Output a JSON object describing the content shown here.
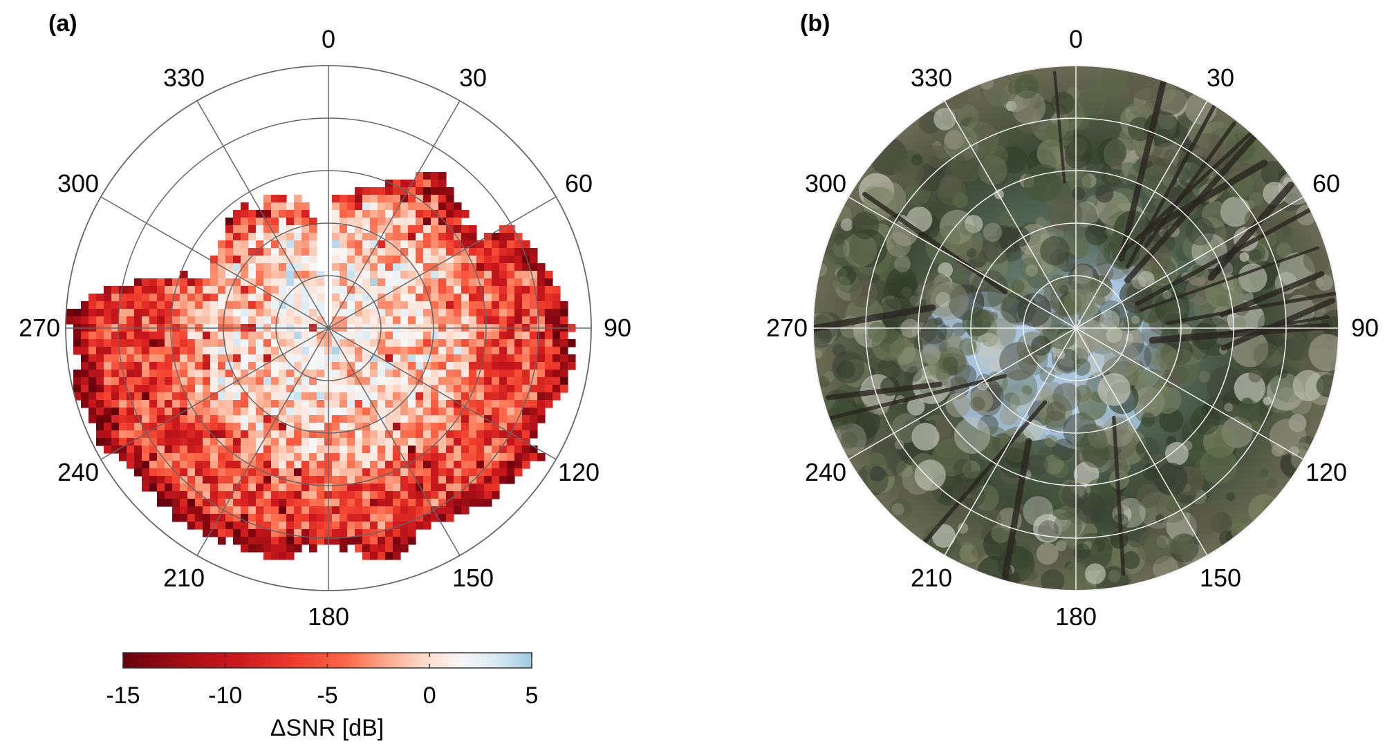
{
  "panels": {
    "a": {
      "label": "(a)"
    },
    "b": {
      "label": "(b)"
    }
  },
  "azimuth_labels": [
    "0",
    "30",
    "60",
    "90",
    "120",
    "150",
    "180",
    "210",
    "240",
    "270",
    "300",
    "330"
  ],
  "colorbar": {
    "title": "ΔSNR [dB]",
    "ticks": [
      "-15",
      "-10",
      "-5",
      "0",
      "5"
    ],
    "colors": {
      "min": "#67000d",
      "low": "#cb181d",
      "mid_low": "#fb6a4a",
      "mid": "#fcbba1",
      "zero": "#f7f7f7",
      "max": "#9ecae1"
    }
  },
  "chart_data": [
    {
      "type": "heatmap",
      "projection": "polar",
      "panel": "(a)",
      "theta_ticks_deg": [
        0,
        30,
        60,
        90,
        120,
        150,
        180,
        210,
        240,
        270,
        300,
        330
      ],
      "radial_rings": 5,
      "grid": true,
      "colorbar_label": "ΔSNR [dB]",
      "clim": [
        -15,
        5
      ],
      "colormap": "diverging red-white-blue",
      "pattern": {
        "center_region_typical_dB": -2,
        "outer_ring_typical_dB": -9,
        "empty_sector_deg": [
          292,
          352
        ]
      }
    },
    {
      "type": "image",
      "projection": "polar",
      "panel": "(b)",
      "content": "fisheye sky photograph looking up through tree canopy",
      "theta_ticks_deg": [
        0,
        30,
        60,
        90,
        120,
        150,
        180,
        210,
        240,
        270,
        300,
        330
      ],
      "radial_rings": 5,
      "grid": true
    }
  ]
}
